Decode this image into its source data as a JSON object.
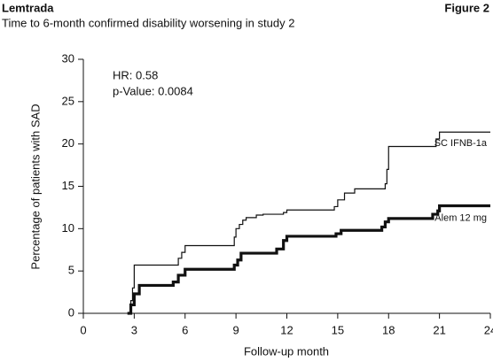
{
  "chart_data": {
    "type": "step",
    "header": "Lemtrada",
    "figure_label": "Figure 2",
    "title": "Time to 6-month confirmed disability worsening in study 2",
    "xlabel": "Follow-up month",
    "ylabel": "Percentage of patients with SAD",
    "annotations": [
      "HR: 0.58",
      "p-Value: 0.0084"
    ],
    "xlim": [
      0,
      24
    ],
    "xticks": [
      0,
      3,
      6,
      9,
      12,
      15,
      18,
      21,
      24
    ],
    "ylim": [
      0,
      30
    ],
    "yticks": [
      0,
      5,
      10,
      15,
      20,
      25,
      30
    ],
    "series": [
      {
        "name": "SC IFNB-1a",
        "color": "#111111",
        "width": 1.2,
        "x": [
          2.6,
          2.8,
          2.9,
          3.0,
          5.6,
          5.8,
          6.0,
          8.9,
          9.0,
          9.2,
          9.4,
          9.6,
          10.2,
          10.6,
          11.8,
          12.0,
          14.8,
          15.0,
          15.4,
          16.0,
          17.8,
          17.9,
          18.0,
          20.8,
          21.0,
          24.0
        ],
        "values": [
          0,
          1.5,
          3,
          5.7,
          6.5,
          7.2,
          8.0,
          9.0,
          10,
          10.5,
          11,
          11.3,
          11.6,
          11.7,
          11.9,
          12.2,
          12.6,
          13.4,
          14.2,
          14.7,
          15.3,
          17,
          19.7,
          20.6,
          21.4,
          21.4
        ]
      },
      {
        "name": "Alem 12 mg",
        "color": "#111111",
        "width": 3.2,
        "x": [
          2.6,
          2.8,
          3.0,
          3.3,
          5.3,
          5.6,
          6.0,
          8.9,
          9.1,
          9.3,
          11.4,
          11.8,
          12.0,
          14.9,
          15.2,
          17.6,
          17.8,
          18.0,
          20.6,
          20.9,
          21.0,
          24.0
        ],
        "values": [
          0,
          1,
          2.3,
          3.3,
          3.7,
          4.5,
          5.2,
          5.7,
          6.3,
          7.1,
          7.6,
          8.6,
          9.1,
          9.4,
          9.8,
          10.2,
          10.8,
          11.2,
          11.7,
          12.1,
          12.7,
          12.7
        ]
      }
    ]
  }
}
